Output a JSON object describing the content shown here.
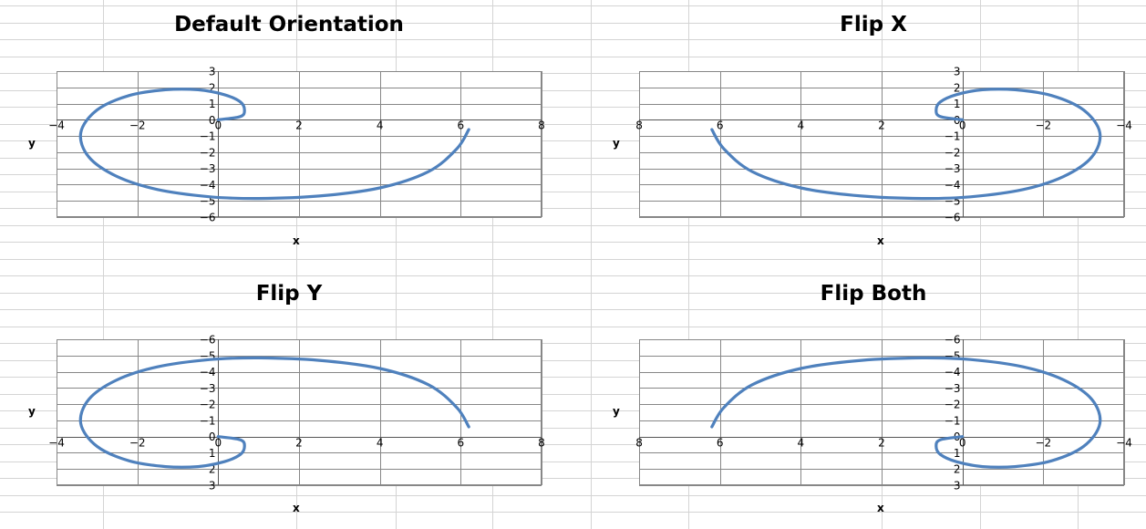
{
  "style": {
    "curve_color": "#4f81bd",
    "plot_grid_color": "#878787",
    "sheet_grid_color": "#d4d4d4",
    "sheet_grid": true,
    "plot_grid": true
  },
  "charts": [
    {
      "title": "Default Orientation",
      "xlabel": "x",
      "ylabel": "y"
    },
    {
      "title": "Flip X",
      "xlabel": "x",
      "ylabel": "y"
    },
    {
      "title": "Flip Y",
      "xlabel": "x",
      "ylabel": "y"
    },
    {
      "title": "Flip Both",
      "xlabel": "x",
      "ylabel": "y"
    }
  ],
  "chart_data": [
    {
      "type": "line",
      "title": "Default Orientation",
      "xlabel": "x",
      "ylabel": "y",
      "xlim": [
        -4,
        8
      ],
      "ylim": [
        -6,
        3
      ],
      "x_reversed": false,
      "y_reversed": false,
      "xticks": [
        -4,
        -2,
        0,
        2,
        4,
        6,
        8
      ],
      "yticks": [
        -6,
        -5,
        -4,
        -3,
        -2,
        -1,
        0,
        1,
        2,
        3
      ],
      "grid": true,
      "series": [
        {
          "x": [
            0,
            0.55,
            0.65,
            0.55,
            0.15,
            -0.5,
            -1.3,
            -2.2,
            -3.0,
            -3.4,
            -3.2,
            -2.5,
            -1.5,
            -0.2,
            1.0,
            2.5,
            4.0,
            5.2,
            5.9,
            6.2
          ],
          "y": [
            0,
            0.2,
            0.6,
            1.1,
            1.55,
            1.85,
            1.85,
            1.5,
            0.6,
            -0.8,
            -2.3,
            -3.5,
            -4.3,
            -4.75,
            -4.85,
            -4.7,
            -4.2,
            -3.2,
            -1.8,
            -0.6
          ]
        }
      ]
    },
    {
      "type": "line",
      "title": "Flip X",
      "xlabel": "x",
      "ylabel": "y",
      "xlim": [
        -4,
        8
      ],
      "ylim": [
        -6,
        3
      ],
      "x_reversed": true,
      "y_reversed": false,
      "xticks": [
        -4,
        -2,
        0,
        2,
        4,
        6,
        8
      ],
      "yticks": [
        -6,
        -5,
        -4,
        -3,
        -2,
        -1,
        0,
        1,
        2,
        3
      ],
      "grid": true,
      "series": [
        {
          "x": [
            0,
            0.55,
            0.65,
            0.55,
            0.15,
            -0.5,
            -1.3,
            -2.2,
            -3.0,
            -3.4,
            -3.2,
            -2.5,
            -1.5,
            -0.2,
            1.0,
            2.5,
            4.0,
            5.2,
            5.9,
            6.2
          ],
          "y": [
            0,
            0.2,
            0.6,
            1.1,
            1.55,
            1.85,
            1.85,
            1.5,
            0.6,
            -0.8,
            -2.3,
            -3.5,
            -4.3,
            -4.75,
            -4.85,
            -4.7,
            -4.2,
            -3.2,
            -1.8,
            -0.6
          ]
        }
      ]
    },
    {
      "type": "line",
      "title": "Flip Y",
      "xlabel": "x",
      "ylabel": "y",
      "xlim": [
        -4,
        8
      ],
      "ylim": [
        -6,
        3
      ],
      "x_reversed": false,
      "y_reversed": true,
      "xticks": [
        -4,
        -2,
        0,
        2,
        4,
        6,
        8
      ],
      "yticks": [
        -6,
        -5,
        -4,
        -3,
        -2,
        -1,
        0,
        1,
        2,
        3
      ],
      "grid": true,
      "series": [
        {
          "x": [
            0,
            0.55,
            0.65,
            0.55,
            0.15,
            -0.5,
            -1.3,
            -2.2,
            -3.0,
            -3.4,
            -3.2,
            -2.5,
            -1.5,
            -0.2,
            1.0,
            2.5,
            4.0,
            5.2,
            5.9,
            6.2
          ],
          "y": [
            0,
            0.2,
            0.6,
            1.1,
            1.55,
            1.85,
            1.85,
            1.5,
            0.6,
            -0.8,
            -2.3,
            -3.5,
            -4.3,
            -4.75,
            -4.85,
            -4.7,
            -4.2,
            -3.2,
            -1.8,
            -0.6
          ]
        }
      ]
    },
    {
      "type": "line",
      "title": "Flip Both",
      "xlabel": "x",
      "ylabel": "y",
      "xlim": [
        -4,
        8
      ],
      "ylim": [
        -6,
        3
      ],
      "x_reversed": true,
      "y_reversed": true,
      "xticks": [
        -4,
        -2,
        0,
        2,
        4,
        6,
        8
      ],
      "yticks": [
        -6,
        -5,
        -4,
        -3,
        -2,
        -1,
        0,
        1,
        2,
        3
      ],
      "grid": true,
      "series": [
        {
          "x": [
            0,
            0.55,
            0.65,
            0.55,
            0.15,
            -0.5,
            -1.3,
            -2.2,
            -3.0,
            -3.4,
            -3.2,
            -2.5,
            -1.5,
            -0.2,
            1.0,
            2.5,
            4.0,
            5.2,
            5.9,
            6.2
          ],
          "y": [
            0,
            0.2,
            0.6,
            1.1,
            1.55,
            1.85,
            1.85,
            1.5,
            0.6,
            -0.8,
            -2.3,
            -3.5,
            -4.3,
            -4.75,
            -4.85,
            -4.7,
            -4.2,
            -3.2,
            -1.8,
            -0.6
          ]
        }
      ]
    }
  ]
}
